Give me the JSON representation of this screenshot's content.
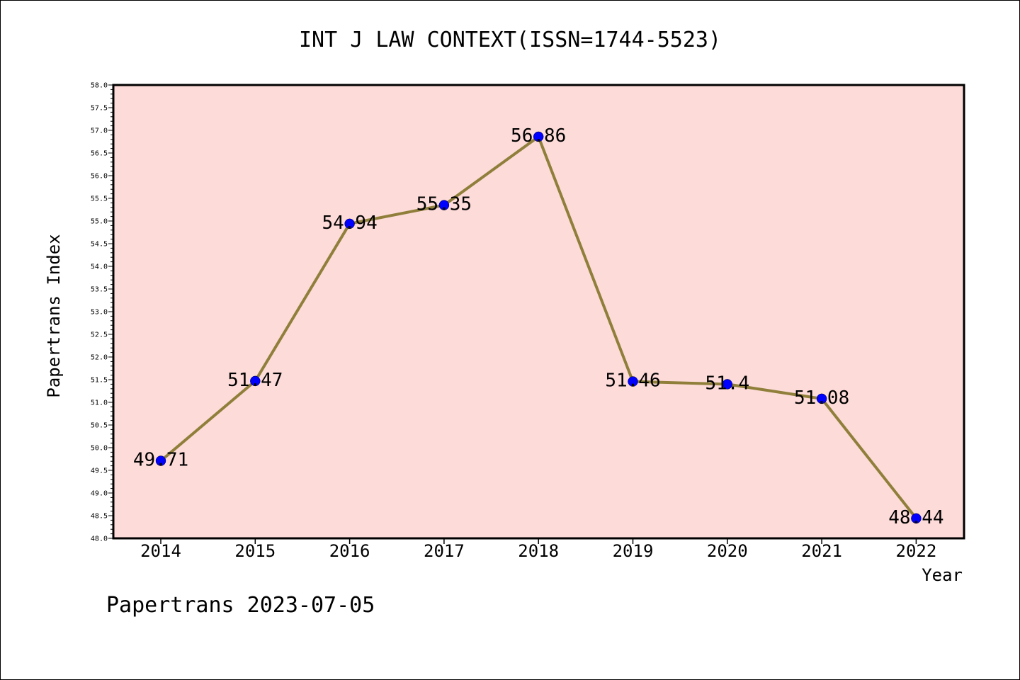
{
  "chart_data": {
    "type": "line",
    "title": "INT J LAW CONTEXT(ISSN=1744-5523)",
    "xlabel": "Year",
    "ylabel": "Papertrans Index",
    "categories": [
      "2014",
      "2015",
      "2016",
      "2017",
      "2018",
      "2019",
      "2020",
      "2021",
      "2022"
    ],
    "series": [
      {
        "values": [
          49.71,
          51.47,
          54.94,
          55.35,
          56.86,
          51.46,
          51.4,
          51.08,
          48.44
        ],
        "labels": [
          "49.71",
          "51.47",
          "54.94",
          "55.35",
          "56.86",
          "51.46",
          "51.4",
          "51.08",
          "48.44"
        ]
      }
    ],
    "ylim": [
      48.0,
      58.0
    ],
    "yticks": [
      "48.0",
      "48.5",
      "49.0",
      "49.5",
      "50.0",
      "50.5",
      "51.0",
      "51.5",
      "52.0",
      "52.5",
      "53.0",
      "53.5",
      "54.0",
      "54.5",
      "55.0",
      "55.5",
      "56.0",
      "56.5",
      "57.0",
      "57.5",
      "58.0"
    ],
    "grid": false,
    "colors": {
      "plot_background": "#fddbd9",
      "line": "#8f7f3a",
      "marker": "#0000ff"
    }
  },
  "footer": "Papertrans 2023-07-05"
}
